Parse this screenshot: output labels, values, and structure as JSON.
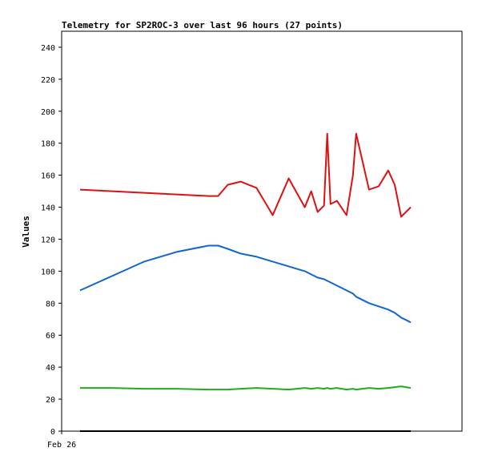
{
  "chart_data": {
    "type": "line",
    "title": "Telemetry for SP2ROC-3 over last 96 hours (27 points)",
    "xlabel": "",
    "ylabel": "Values",
    "ylim": [
      0,
      250
    ],
    "yticks": [
      0,
      20,
      40,
      60,
      80,
      100,
      120,
      140,
      160,
      180,
      200,
      220,
      240
    ],
    "xtick_labels": [
      "Feb 26"
    ],
    "grid": false,
    "x": [
      0.0,
      1.0,
      2.0,
      3.0,
      4.0,
      4.3,
      4.6,
      5.0,
      5.5,
      6.0,
      6.5,
      7.0,
      7.2,
      7.4,
      7.6,
      7.7,
      7.8,
      8.0,
      8.3,
      8.5,
      8.6,
      9.0,
      9.3,
      9.6,
      9.8,
      10.0,
      10.3
    ],
    "series": [
      {
        "color": "#dd1111",
        "values": [
          151,
          150,
          149,
          148,
          147,
          147,
          154,
          156,
          152,
          135,
          158,
          140,
          150,
          137,
          141,
          186,
          142,
          144,
          135,
          160,
          186,
          151,
          153,
          163,
          154,
          134,
          140
        ]
      },
      {
        "color": "#1166cc",
        "values": [
          88,
          97,
          106,
          112,
          116,
          116,
          114,
          111,
          109,
          106,
          103,
          100,
          98,
          96,
          95,
          94,
          93,
          91,
          88,
          86,
          84,
          80,
          78,
          76,
          74,
          71,
          68
        ]
      },
      {
        "color": "#22aa22",
        "values": [
          27,
          27,
          26.5,
          26.5,
          26,
          26,
          26,
          26.5,
          27,
          26.5,
          26,
          27,
          26.5,
          27,
          26.5,
          27,
          26.5,
          27,
          26,
          26.5,
          26,
          27,
          26.5,
          27,
          27.5,
          28,
          27
        ]
      },
      {
        "color": "#000000",
        "values": [
          0,
          0,
          0,
          0,
          0,
          0,
          0,
          0,
          0,
          0,
          0,
          0,
          0,
          0,
          0,
          0,
          0,
          0,
          0,
          0,
          0,
          0,
          0,
          0,
          0,
          0,
          0
        ]
      }
    ]
  }
}
